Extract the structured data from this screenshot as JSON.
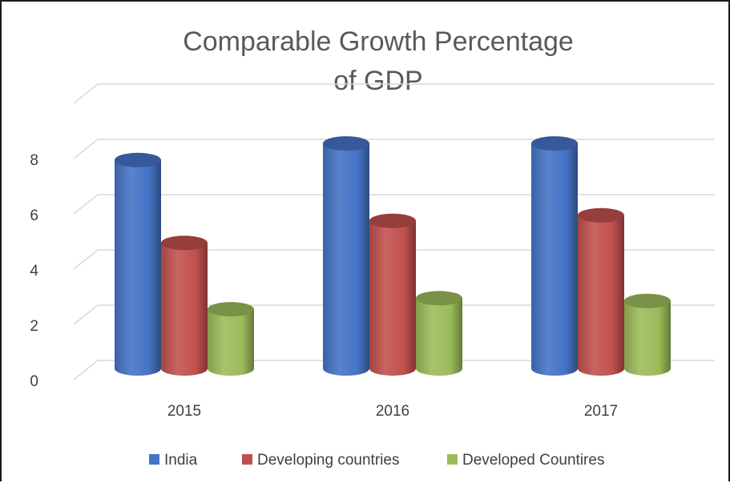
{
  "chart_data": {
    "type": "bar",
    "title": "Comparable Growth Percentage of GDP",
    "title_lines": [
      "Comparable Growth Percentage",
      "of GDP"
    ],
    "categories": [
      "2015",
      "2016",
      "2017"
    ],
    "series": [
      {
        "name": "India",
        "values": [
          7.6,
          8.2,
          8.2
        ],
        "color": "#4472C4"
      },
      {
        "name": "Developing countries",
        "values": [
          4.6,
          5.4,
          5.6
        ],
        "color": "#C0504D"
      },
      {
        "name": "Developed Countires",
        "values": [
          2.2,
          2.6,
          2.5
        ],
        "color": "#9BBB59"
      }
    ],
    "y_ticks": [
      0,
      2,
      4,
      6,
      8
    ],
    "ylim": [
      0,
      9
    ],
    "xlabel": "",
    "ylabel": "",
    "grid": true,
    "legend_position": "bottom",
    "style": "3d-cylinder"
  }
}
